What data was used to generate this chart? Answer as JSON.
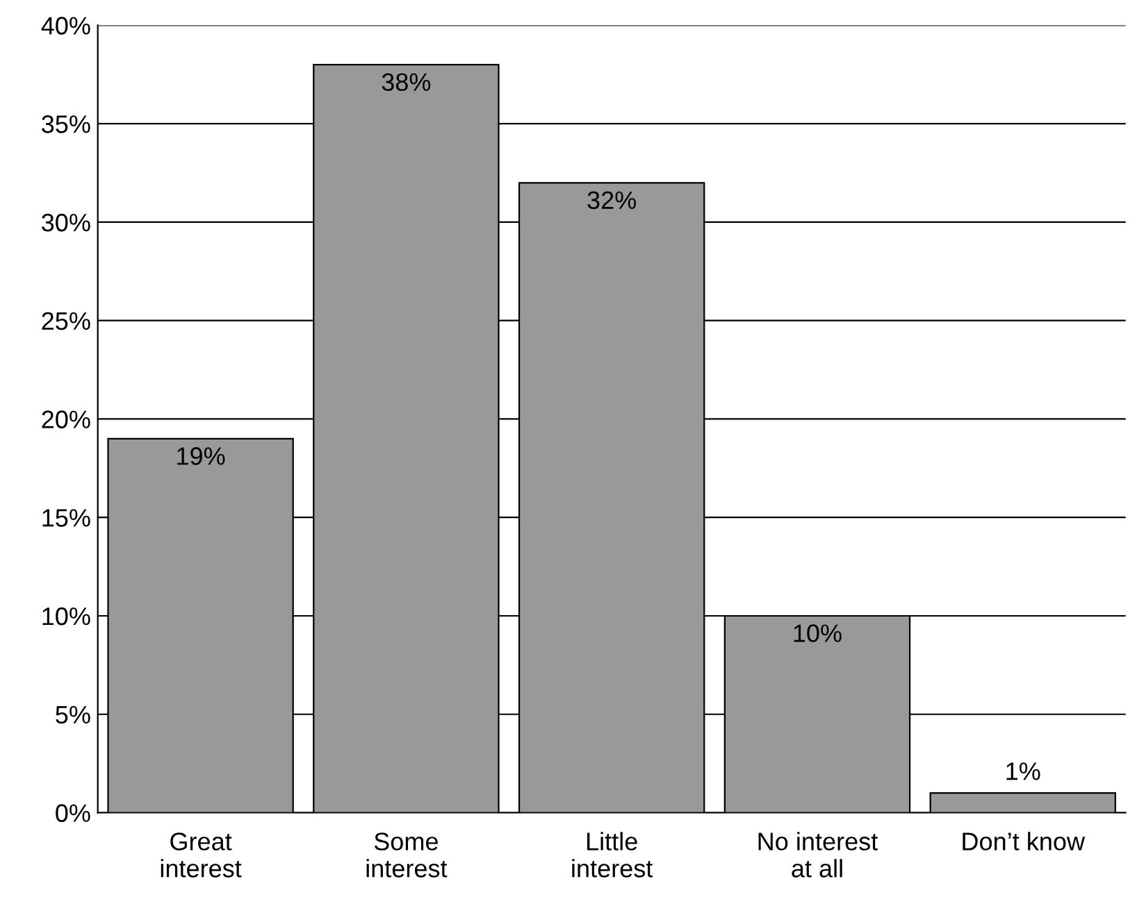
{
  "chart_data": {
    "type": "bar",
    "categories": [
      "Great\ninterest",
      "Some\ninterest",
      "Little\ninterest",
      "No interest\nat all",
      "Don’t know"
    ],
    "values": [
      19,
      38,
      32,
      10,
      1
    ],
    "value_labels": [
      "19%",
      "38%",
      "32%",
      "10%",
      "1%"
    ],
    "color": "#999999",
    "ylim": [
      0,
      40
    ],
    "yticks": [
      {
        "value": 0,
        "label": "0%"
      },
      {
        "value": 5,
        "label": "5%"
      },
      {
        "value": 10,
        "label": "10%"
      },
      {
        "value": 15,
        "label": "15%"
      },
      {
        "value": 20,
        "label": "20%"
      },
      {
        "value": 25,
        "label": "25%"
      },
      {
        "value": 30,
        "label": "30%"
      },
      {
        "value": 35,
        "label": "35%"
      },
      {
        "value": 40,
        "label": "40%"
      }
    ],
    "grid": "y"
  }
}
